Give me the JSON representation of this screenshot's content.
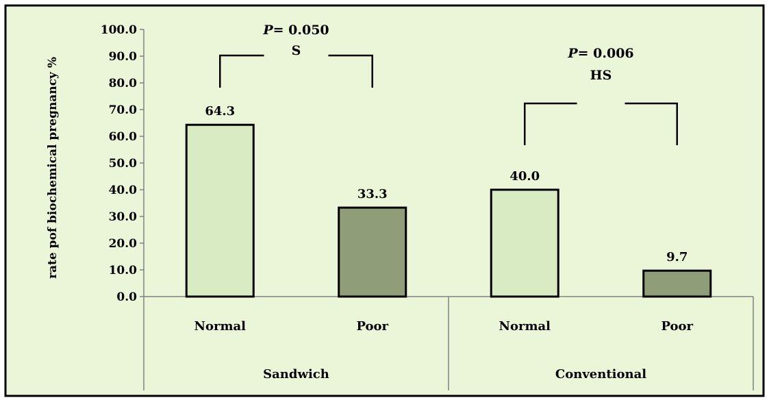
{
  "chart_data": {
    "type": "bar",
    "ylabel": "rate pof biochemical   pregnancy %",
    "ylim": [
      0,
      100
    ],
    "yticks": [
      "0.0",
      "10.0",
      "20.0",
      "30.0",
      "40.0",
      "50.0",
      "60.0",
      "70.0",
      "80.0",
      "90.0",
      "100.0"
    ],
    "grid": false,
    "groups": [
      {
        "name": "Sandwich",
        "bars": [
          {
            "category": "Normal",
            "value": 64.3,
            "label": "64.3",
            "color": "#d9ebc2"
          },
          {
            "category": "Poor",
            "value": 33.3,
            "label": "33.3",
            "color": "#8f9e78"
          }
        ],
        "comparison": {
          "p_prefix": "P",
          "p_text": "= 0.050",
          "significance": "S"
        }
      },
      {
        "name": "Conventional",
        "bars": [
          {
            "category": "Normal",
            "value": 40.0,
            "label": "40.0",
            "color": "#d9ebc2"
          },
          {
            "category": "Poor",
            "value": 9.7,
            "label": "9.7",
            "color": "#8f9e78"
          }
        ],
        "comparison": {
          "p_prefix": "P",
          "p_text": "= 0.006",
          "significance": "HS"
        }
      }
    ]
  },
  "colors": {
    "plot_background": "#ebf6d9",
    "frame": "#000000",
    "axis": "#808080",
    "bar_stroke": "#000000"
  }
}
